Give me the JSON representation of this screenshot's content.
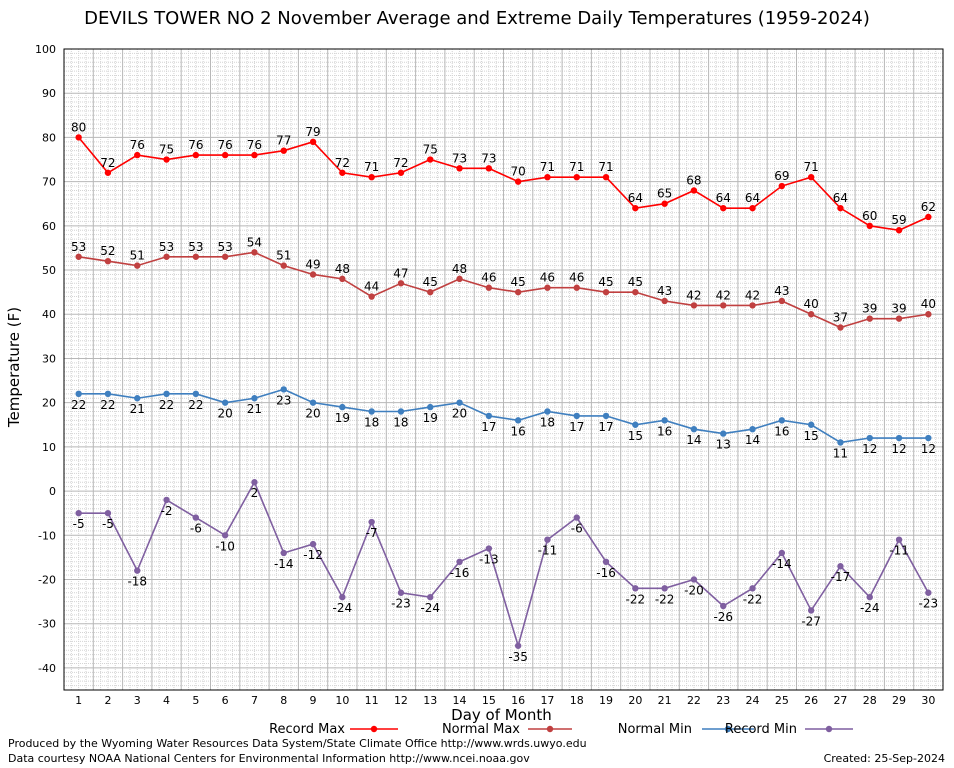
{
  "title": "DEVILS TOWER NO 2 November Average and Extreme Daily Temperatures (1959-2024)",
  "footer": {
    "produced_by": "Produced by the Wyoming Water Resources Data System/State Climate Office http://www.wrds.uwyo.edu",
    "data_courtesy": "Data courtesy NOAA National Centers for Environmental Information http://www.ncei.noaa.gov",
    "created": "Created:  25-Sep-2024"
  },
  "chart_data": {
    "type": "line",
    "title": "DEVILS TOWER NO 2 November Average and Extreme Daily Temperatures (1959-2024)",
    "xlabel": "Day of Month",
    "ylabel": "Temperature (F)",
    "ylim": [
      -45,
      100
    ],
    "y_ticks": [
      -40,
      -30,
      -20,
      -10,
      0,
      10,
      20,
      30,
      40,
      50,
      60,
      70,
      80,
      90,
      100
    ],
    "x": [
      1,
      2,
      3,
      4,
      5,
      6,
      7,
      8,
      9,
      10,
      11,
      12,
      13,
      14,
      15,
      16,
      17,
      18,
      19,
      20,
      21,
      22,
      23,
      24,
      25,
      26,
      27,
      28,
      29,
      30
    ],
    "grid": true,
    "legend_position": "bottom",
    "series": [
      {
        "name": "Record Max",
        "color": "#ff0000",
        "label_position": "above",
        "values": [
          80,
          72,
          76,
          75,
          76,
          76,
          76,
          77,
          79,
          72,
          71,
          72,
          75,
          73,
          73,
          70,
          71,
          71,
          71,
          64,
          65,
          68,
          64,
          64,
          69,
          71,
          64,
          60,
          59,
          62
        ]
      },
      {
        "name": "Normal Max",
        "color": "#c04040",
        "label_position": "above",
        "values": [
          53,
          52,
          51,
          53,
          53,
          53,
          54,
          51,
          49,
          48,
          44,
          47,
          45,
          48,
          46,
          45,
          46,
          46,
          45,
          45,
          43,
          42,
          42,
          42,
          43,
          40,
          37,
          39,
          39,
          40
        ]
      },
      {
        "name": "Normal Min",
        "color": "#3f7fbf",
        "label_position": "below",
        "values": [
          22,
          22,
          21,
          22,
          22,
          20,
          21,
          23,
          20,
          19,
          18,
          18,
          19,
          20,
          17,
          16,
          18,
          17,
          17,
          15,
          16,
          14,
          13,
          14,
          16,
          15,
          11,
          12,
          12,
          12
        ]
      },
      {
        "name": "Record Min",
        "color": "#7f5fa0",
        "label_position": "below",
        "values": [
          -5,
          -5,
          -18,
          -2,
          -6,
          -10,
          2,
          -14,
          -12,
          -24,
          -7,
          -23,
          -24,
          -16,
          -13,
          -35,
          -11,
          -6,
          -16,
          -22,
          -22,
          -20,
          -26,
          -22,
          -14,
          -27,
          -17,
          -24,
          -11,
          -23
        ]
      }
    ]
  }
}
